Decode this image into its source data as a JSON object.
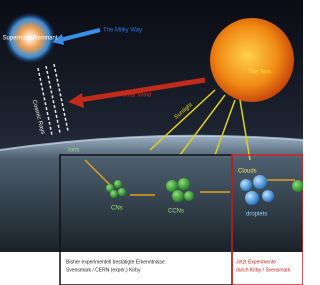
{
  "labels": {
    "supernova": "Supernova Remnant",
    "milky_way": "The Milky Way",
    "sun": "The Sun",
    "solar_wind": "Solar Wind",
    "cosmic_rays": "Cosmic Rays",
    "sunlight": "Sunlight",
    "ions": "Ions",
    "cns": "CNs",
    "ccns": "CCNs",
    "clouds": "Clouds",
    "droplets": "droplets"
  },
  "captions": {
    "left": [
      "Bisher experimentell bestätigte Erkenntnisse:",
      "Svensmark / CERN (exper.) Kirby"
    ],
    "right": [
      "Jetzt Experimente",
      "durch Kirby / Svensmark"
    ]
  }
}
